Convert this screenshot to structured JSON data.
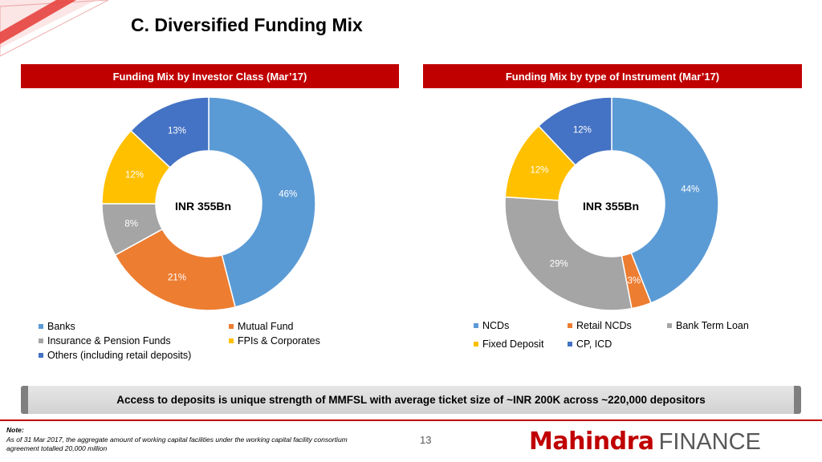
{
  "title": "C. Diversified Funding Mix",
  "colors": {
    "blue": "#5b9bd5",
    "orange": "#ed7d31",
    "gray": "#a5a5a5",
    "gold": "#ffc000",
    "navy": "#4472c4",
    "red": "#c00000"
  },
  "chart_data": [
    {
      "type": "pie",
      "title": "Funding Mix by Investor Class (Mar’17)",
      "center_label": "INR 355Bn",
      "slices": [
        {
          "label": "Banks",
          "value": 46,
          "display": "46%",
          "color": "#5b9bd5"
        },
        {
          "label": "Mutual Fund",
          "value": 21,
          "display": "21%",
          "color": "#ed7d31"
        },
        {
          "label": "Insurance & Pension Funds",
          "value": 8,
          "display": "8%",
          "color": "#a5a5a5"
        },
        {
          "label": "FPIs & Corporates",
          "value": 12,
          "display": "12%",
          "color": "#ffc000"
        },
        {
          "label": "Others  (including retail deposits)",
          "value": 13,
          "display": "13%",
          "color": "#4472c4"
        }
      ]
    },
    {
      "type": "pie",
      "title": "Funding Mix by type of Instrument (Mar’17)",
      "center_label": "INR 355Bn",
      "slices": [
        {
          "label": "NCDs",
          "value": 44,
          "display": "44%",
          "color": "#5b9bd5"
        },
        {
          "label": "Retail NCDs",
          "value": 3,
          "display": "3%",
          "color": "#ed7d31"
        },
        {
          "label": "Bank Term Loan",
          "value": 29,
          "display": "29%",
          "color": "#a5a5a5"
        },
        {
          "label": "Fixed Deposit",
          "value": 12,
          "display": "12%",
          "color": "#ffc000"
        },
        {
          "label": "CP, ICD",
          "value": 12,
          "display": "12%",
          "color": "#4472c4"
        }
      ]
    }
  ],
  "callout": "Access to deposits is unique strength of MMFSL with average ticket size of ~INR 200K across ~220,000 depositors",
  "note": {
    "title": "Note:",
    "text": "As of 31 Mar 2017, the aggregate amount of working capital facilities under the working capital facility consortium agreement totalled 20,000 million"
  },
  "page_number": "13",
  "logo": {
    "brand": "Mahindra",
    "suffix": "FINANCE"
  }
}
